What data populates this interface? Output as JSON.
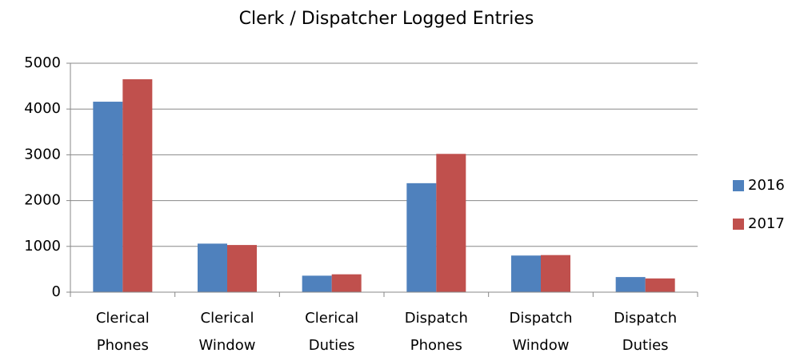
{
  "chart_data": {
    "type": "bar",
    "title": "Clerk / Dispatcher Logged Entries",
    "categories": [
      "Clerical Phones",
      "Clerical Window",
      "Clerical Duties",
      "Dispatch Phones",
      "Dispatch Window",
      "Dispatch Duties"
    ],
    "series": [
      {
        "name": "2016",
        "color": "#4f81bd",
        "values": [
          4160,
          1060,
          360,
          2380,
          800,
          330
        ]
      },
      {
        "name": "2017",
        "color": "#c0504d",
        "values": [
          4650,
          1030,
          390,
          3020,
          810,
          300
        ]
      }
    ],
    "ylim": [
      0,
      5000
    ],
    "yticks": [
      0,
      1000,
      2000,
      3000,
      4000,
      5000
    ],
    "grid": true,
    "legend": "right"
  }
}
